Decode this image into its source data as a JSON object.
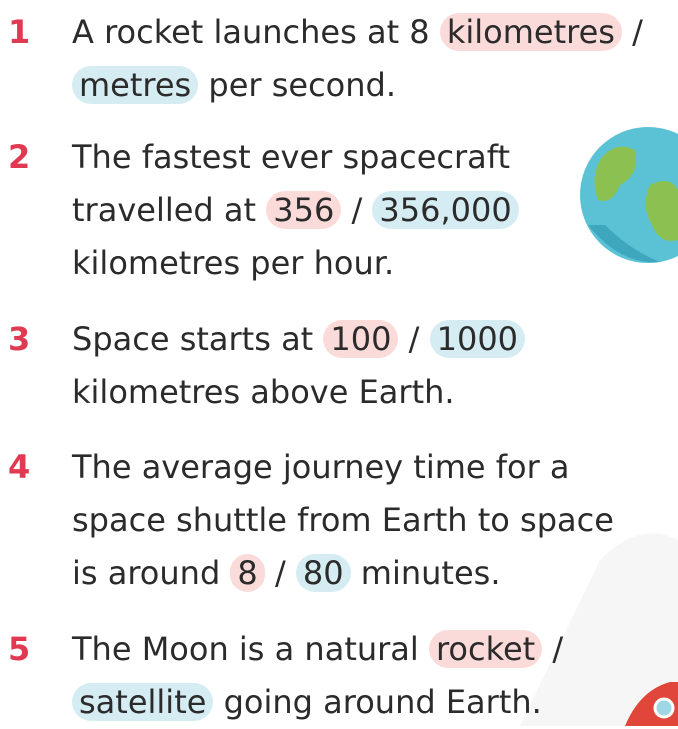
{
  "questions": [
    {
      "number": "1",
      "lines": [
        [
          "A rocket launches at 8 ",
          {
            "text": "kilometres",
            "color": "#fbdada"
          },
          " /"
        ],
        [
          {
            "text": "metres",
            "color": "#d5ecf3"
          },
          " per second."
        ]
      ]
    },
    {
      "number": "2",
      "lines": [
        [
          "The fastest ever spacecraft"
        ],
        [
          "travelled at ",
          {
            "text": "356",
            "color": "#fbdada"
          },
          " / ",
          {
            "text": "356,000",
            "color": "#d5ecf3"
          }
        ],
        [
          "kilometres per hour."
        ]
      ]
    },
    {
      "number": "3",
      "lines": [
        [
          "Space starts at ",
          {
            "text": "100",
            "color": "#fbdada"
          },
          " / ",
          {
            "text": "1000",
            "color": "#d5ecf3"
          }
        ],
        [
          "kilometres above Earth."
        ]
      ]
    },
    {
      "number": "4",
      "lines": [
        [
          "The average journey time for a"
        ],
        [
          "space shuttle from Earth to space"
        ],
        [
          "is around ",
          {
            "text": "8",
            "color": "#fbdada"
          },
          " / ",
          {
            "text": "80",
            "color": "#d5ecf3"
          },
          " minutes."
        ]
      ]
    },
    {
      "number": "5",
      "lines": [
        [
          "The Moon is a natural ",
          {
            "text": "rocket",
            "color": "#fbdada"
          },
          " /"
        ],
        [
          {
            "text": "satellite",
            "color": "#d5ecf3"
          },
          " going around Earth."
        ]
      ]
    }
  ]
}
